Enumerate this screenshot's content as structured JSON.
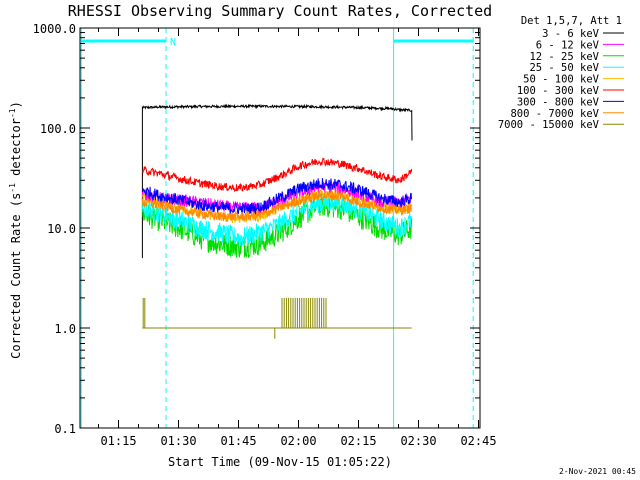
{
  "chart_data": {
    "type": "line",
    "title": "RHESSI Observing Summary Count Rates, Corrected",
    "xlabel": "Start Time (09-Nov-15 01:05:22)",
    "ylabel_main": "Corrected Count Rate (s",
    "ylabel_sup1": "-1",
    "ylabel_mid": " detector",
    "ylabel_sup2": "-1",
    "ylabel_end": ")",
    "yscale": "log",
    "ylim": [
      0.1,
      1000
    ],
    "xlim_minutes": [
      0,
      100
    ],
    "x_ticks": [
      "01:15",
      "01:30",
      "01:45",
      "02:00",
      "02:15",
      "02:30",
      "02:45"
    ],
    "y_ticks": [
      "0.1",
      "1.0",
      "10.0",
      "100.0",
      "1000.0"
    ],
    "legend_header": "Det 1,5,7, Att 1",
    "footer_date": "2-Nov-2021 00:45",
    "annotation_N": "N",
    "series": [
      {
        "name": "3 - 6 keV",
        "color": "#000000",
        "points": [
          [
            15.6,
            160
          ],
          [
            20,
            162
          ],
          [
            30,
            164
          ],
          [
            45,
            165
          ],
          [
            60,
            163
          ],
          [
            70,
            160
          ],
          [
            78,
            156
          ],
          [
            80,
            152
          ],
          [
            83,
            150
          ]
        ]
      },
      {
        "name": "6 - 12 keV",
        "color": "#ff00ff",
        "points": [
          [
            15.6,
            22
          ],
          [
            20,
            20
          ],
          [
            30,
            18
          ],
          [
            38,
            16
          ],
          [
            45,
            16
          ],
          [
            55,
            22
          ],
          [
            60,
            26
          ],
          [
            65,
            25
          ],
          [
            70,
            22
          ],
          [
            75,
            18
          ],
          [
            80,
            18
          ],
          [
            83,
            20
          ]
        ]
      },
      {
        "name": "12 - 25 keV",
        "color": "#00dd00",
        "points": [
          [
            15.6,
            14
          ],
          [
            20,
            12
          ],
          [
            25,
            10
          ],
          [
            30,
            8
          ],
          [
            35,
            7
          ],
          [
            40,
            6.5
          ],
          [
            45,
            7
          ],
          [
            50,
            9
          ],
          [
            55,
            13
          ],
          [
            60,
            17
          ],
          [
            65,
            16
          ],
          [
            70,
            13
          ],
          [
            75,
            10
          ],
          [
            80,
            8.5
          ],
          [
            83,
            10
          ]
        ]
      },
      {
        "name": "25 - 50 keV",
        "color": "#00ffff",
        "points": [
          [
            15.6,
            16
          ],
          [
            20,
            14
          ],
          [
            25,
            12
          ],
          [
            30,
            10
          ],
          [
            35,
            9
          ],
          [
            40,
            8
          ],
          [
            45,
            9
          ],
          [
            50,
            11
          ],
          [
            55,
            15
          ],
          [
            60,
            18
          ],
          [
            65,
            18
          ],
          [
            70,
            15
          ],
          [
            75,
            12
          ],
          [
            80,
            10
          ],
          [
            83,
            12
          ]
        ]
      },
      {
        "name": "50 - 100 keV",
        "color": "#ffbb00",
        "points": [
          [
            15.6,
            20
          ],
          [
            20,
            18
          ],
          [
            25,
            16
          ],
          [
            30,
            14
          ],
          [
            35,
            13
          ],
          [
            40,
            12.5
          ],
          [
            45,
            13
          ],
          [
            50,
            16
          ],
          [
            55,
            19
          ],
          [
            60,
            22
          ],
          [
            65,
            22
          ],
          [
            70,
            19
          ],
          [
            75,
            16
          ],
          [
            80,
            15
          ],
          [
            83,
            16
          ]
        ]
      },
      {
        "name": "100 - 300 keV",
        "color": "#ff0000",
        "points": [
          [
            15.6,
            38
          ],
          [
            20,
            35
          ],
          [
            25,
            31
          ],
          [
            30,
            28
          ],
          [
            35,
            26
          ],
          [
            40,
            25
          ],
          [
            45,
            27
          ],
          [
            50,
            33
          ],
          [
            55,
            42
          ],
          [
            60,
            47
          ],
          [
            65,
            44
          ],
          [
            70,
            39
          ],
          [
            75,
            33
          ],
          [
            80,
            30
          ],
          [
            83,
            37
          ]
        ]
      },
      {
        "name": "300 - 800 keV",
        "color": "#0000ff",
        "points": [
          [
            15.6,
            24
          ],
          [
            20,
            21
          ],
          [
            25,
            19
          ],
          [
            30,
            17
          ],
          [
            35,
            16
          ],
          [
            40,
            15.5
          ],
          [
            45,
            16
          ],
          [
            50,
            20
          ],
          [
            55,
            25
          ],
          [
            60,
            28
          ],
          [
            65,
            27
          ],
          [
            70,
            24
          ],
          [
            75,
            20
          ],
          [
            80,
            18
          ],
          [
            83,
            20
          ]
        ]
      },
      {
        "name": "800 - 7000 keV",
        "color": "#ff8800",
        "points": [
          [
            15.6,
            18
          ],
          [
            20,
            17
          ],
          [
            25,
            15
          ],
          [
            30,
            14
          ],
          [
            35,
            13
          ],
          [
            40,
            13
          ],
          [
            45,
            13.5
          ],
          [
            50,
            16
          ],
          [
            55,
            19
          ],
          [
            60,
            21
          ],
          [
            65,
            21
          ],
          [
            70,
            18
          ],
          [
            75,
            16
          ],
          [
            80,
            15
          ],
          [
            83,
            16
          ]
        ]
      },
      {
        "name": "7000 - 15000 keV",
        "color": "#888800",
        "points": [
          [
            15.6,
            1
          ],
          [
            20,
            1
          ],
          [
            30,
            1
          ],
          [
            40,
            1
          ],
          [
            50,
            1
          ],
          [
            60,
            1
          ],
          [
            70,
            1
          ],
          [
            80,
            1
          ],
          [
            83,
            1
          ]
        ]
      }
    ],
    "vertical_lines": [
      {
        "x": 0.3,
        "style": "solid",
        "color": "#00ffff"
      },
      {
        "x": 21.5,
        "style": "dashed",
        "color": "#00ffff"
      },
      {
        "x": 78.4,
        "style": "solid",
        "color": "#00ffff"
      },
      {
        "x": 98.3,
        "style": "dashed",
        "color": "#00ffff"
      }
    ],
    "night_segments": [
      [
        0.3,
        21.5
      ],
      [
        78.4,
        98.3
      ]
    ]
  }
}
